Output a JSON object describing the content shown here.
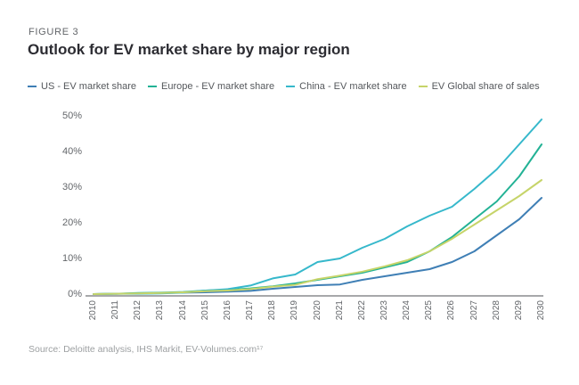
{
  "figure_label": "FIGURE 3",
  "title": "Outlook for EV market share by major region",
  "source": "Source: Deloitte analysis, IHS Markit, EV-Volumes.com¹⁷",
  "colors": {
    "us_line": "#3f7fb5",
    "europe_line": "#23b295",
    "china_line": "#36b8cb",
    "global_line": "#c6d469",
    "axis_line": "#a7a8aa",
    "tick_text": "#63666a"
  },
  "chart_data": {
    "type": "line",
    "title": "Outlook for EV market share by major region",
    "xlabel": "",
    "ylabel": "",
    "x": [
      2010,
      2011,
      2012,
      2013,
      2014,
      2015,
      2016,
      2017,
      2018,
      2019,
      2020,
      2021,
      2022,
      2023,
      2024,
      2025,
      2026,
      2027,
      2028,
      2029,
      2030
    ],
    "ylim": [
      0,
      50
    ],
    "yticks": [
      "0%",
      "10%",
      "20%",
      "30%",
      "40%",
      "50%"
    ],
    "grid": false,
    "legend_position": "top",
    "series": [
      {
        "name": "US - EV market share",
        "color": "#3f7fb5",
        "values": [
          0,
          0.1,
          0.2,
          0.3,
          0.4,
          0.5,
          0.7,
          0.9,
          1.5,
          2,
          2.5,
          2.7,
          4,
          5,
          6,
          7,
          9,
          12,
          16.5,
          21,
          27
        ]
      },
      {
        "name": "Europe - EV market share",
        "color": "#23b295",
        "values": [
          0,
          0.1,
          0.3,
          0.4,
          0.6,
          1,
          1.2,
          1.6,
          2.2,
          3,
          4,
          5,
          6,
          7.5,
          9,
          12,
          16,
          21,
          26,
          33,
          42
        ]
      },
      {
        "name": "China - EV market share",
        "color": "#36b8cb",
        "values": [
          0,
          0.1,
          0.1,
          0.2,
          0.4,
          1,
          1.4,
          2.4,
          4.4,
          5.5,
          9,
          10,
          13,
          15.5,
          19,
          22,
          24.5,
          29.5,
          35,
          42,
          49
        ]
      },
      {
        "name": "EV Global share of sales",
        "color": "#c6d469",
        "values": [
          0,
          0.1,
          0.2,
          0.3,
          0.5,
          0.8,
          1,
          1.4,
          2.1,
          2.6,
          4.2,
          5.2,
          6.3,
          7.8,
          9.5,
          12,
          15.5,
          19.5,
          23.5,
          27.5,
          32
        ]
      }
    ]
  }
}
